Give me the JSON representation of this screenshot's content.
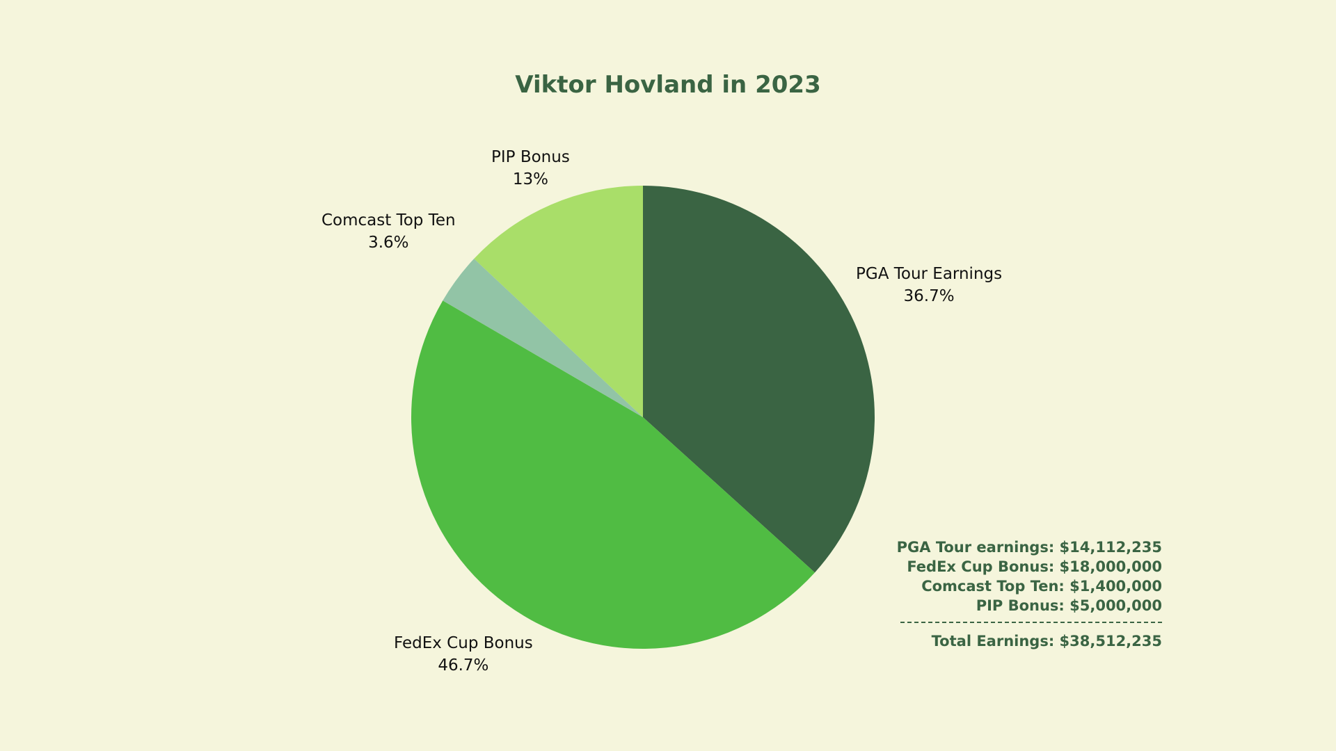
{
  "title": "Viktor Hovland in 2023",
  "chart_data": {
    "type": "pie",
    "title": "Viktor Hovland in 2023",
    "slices": [
      {
        "label": "PGA Tour Earnings",
        "value": 36.7,
        "pct_label": "36.7%",
        "color": "#3A6443"
      },
      {
        "label": "FedEx Cup Bonus",
        "value": 46.7,
        "pct_label": "46.7%",
        "color": "#50BC43"
      },
      {
        "label": "Comcast Top Ten",
        "value": 3.6,
        "pct_label": "3.6%",
        "color": "#92C4A6"
      },
      {
        "label": "PIP Bonus",
        "value": 13,
        "pct_label": "13%",
        "color": "#A9DE69"
      }
    ],
    "start_angle_deg": 0,
    "direction": "clockwise"
  },
  "summary": {
    "lines": [
      "PGA Tour earnings: $14,112,235",
      "FedEx Cup Bonus: $18,000,000",
      "Comcast Top Ten: $1,400,000",
      "PIP Bonus: $5,000,000"
    ],
    "total": "Total Earnings: $38,512,235"
  },
  "colors": {
    "background": "#F5F5DC",
    "accent": "#3A6443"
  }
}
